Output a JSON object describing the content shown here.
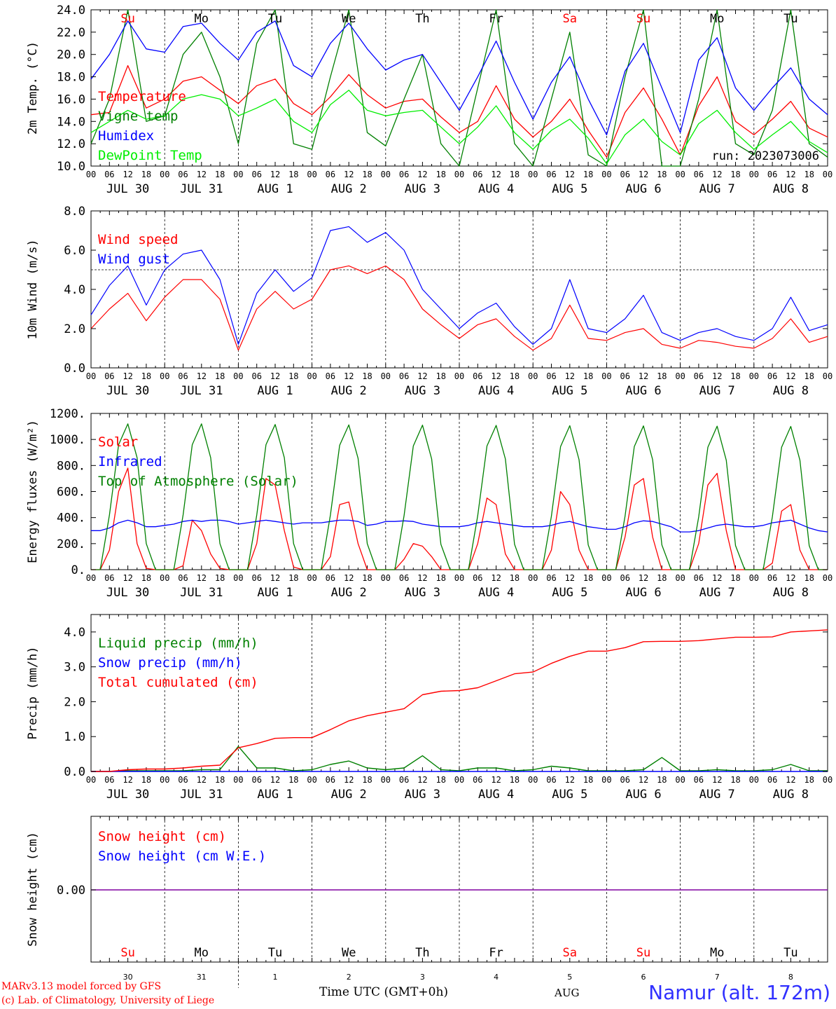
{
  "x_axis": {
    "hour_ticks": [
      "00",
      "06",
      "12",
      "18"
    ],
    "final_tick": "00",
    "date_labels": [
      "JUL 30",
      "JUL 31",
      "AUG  1",
      "AUG  2",
      "AUG  3",
      "AUG  4",
      "AUG  5",
      "AUG  6",
      "AUG  7",
      "AUG  8"
    ],
    "day_names": [
      "Su",
      "Mo",
      "Tu",
      "We",
      "Th",
      "Fr",
      "Sa",
      "Su",
      "Mo",
      "Tu"
    ],
    "weekend_flags": [
      true,
      false,
      false,
      false,
      false,
      false,
      true,
      true,
      false,
      false
    ],
    "day_numbers": [
      "30",
      "31",
      "1",
      "2",
      "3",
      "4",
      "5",
      "6",
      "7",
      "8"
    ],
    "month_label": "AUG",
    "time_label": "Time UTC (GMT+0h)"
  },
  "colors": {
    "red": "#ff0000",
    "green": "#008000",
    "blue": "#0000ff",
    "lightgreen": "#00ee00",
    "purple": "#8000a0",
    "weekend": "#ff0000",
    "weekday": "#000000"
  },
  "footer": {
    "model": "MARv3.13 model forced by GFS",
    "credit": "(c) Lab. of Climatology, University of Liege",
    "station": "Namur (alt. 172m)"
  },
  "chart_data": [
    {
      "type": "line",
      "ylabel": "2m Temp. (°C)",
      "ylim": [
        10.0,
        24.0
      ],
      "yticks": [
        "10.0",
        "12.0",
        "14.0",
        "16.0",
        "18.0",
        "20.0",
        "22.0",
        "24.0"
      ],
      "run_label": "run: 2023073006",
      "x_unit": "hours since JUL 30 00 UTC",
      "x": [
        0,
        6,
        12,
        18,
        24,
        30,
        36,
        42,
        48,
        54,
        60,
        66,
        72,
        78,
        84,
        90,
        96,
        102,
        108,
        114,
        120,
        126,
        132,
        138,
        144,
        150,
        156,
        162,
        168,
        174,
        180,
        186,
        192,
        198,
        204,
        210,
        216,
        222,
        228,
        234,
        240
      ],
      "series": [
        {
          "name": "Temperature",
          "color": "#ff0000",
          "values": [
            14.6,
            14.8,
            19.0,
            15.2,
            16.0,
            17.6,
            18.0,
            16.8,
            15.6,
            17.2,
            17.8,
            15.6,
            14.6,
            16.2,
            18.2,
            16.4,
            15.2,
            15.8,
            16.0,
            14.4,
            13.0,
            14.0,
            17.2,
            14.2,
            12.6,
            14.0,
            16.0,
            13.2,
            10.8,
            14.8,
            17.0,
            14.2,
            11.0,
            15.4,
            18.0,
            14.0,
            12.8,
            14.2,
            15.8,
            13.4,
            12.6
          ]
        },
        {
          "name": "Vigne temp",
          "color": "#008000",
          "values": [
            12.0,
            16.0,
            24.0,
            14.0,
            14.5,
            20.0,
            22.0,
            18.0,
            12.0,
            21.0,
            24.0,
            12.0,
            11.5,
            18.0,
            24.0,
            13.0,
            11.8,
            16.0,
            20.0,
            12.0,
            10.0,
            17.0,
            24.0,
            12.0,
            10.0,
            16.0,
            22.0,
            11.0,
            9.5,
            18.0,
            24.0,
            10.0,
            9.5,
            16.0,
            24.0,
            12.0,
            11.0,
            15.0,
            24.0,
            12.0,
            10.8
          ]
        },
        {
          "name": "Humidex",
          "color": "#0000ff",
          "values": [
            17.8,
            20.0,
            23.0,
            20.5,
            20.2,
            22.5,
            22.8,
            21.0,
            19.5,
            22.0,
            23.0,
            19.0,
            18.0,
            21.0,
            22.8,
            20.5,
            18.6,
            19.5,
            20.0,
            17.5,
            15.0,
            18.0,
            21.2,
            17.5,
            14.2,
            17.5,
            19.8,
            16.0,
            12.8,
            18.5,
            21.0,
            17.0,
            13.0,
            19.5,
            21.5,
            17.0,
            15.0,
            17.0,
            18.8,
            16.0,
            14.6
          ]
        },
        {
          "name": "DewPoint Temp",
          "color": "#00ee00",
          "values": [
            13.0,
            14.0,
            15.0,
            14.2,
            14.5,
            16.0,
            16.4,
            16.0,
            14.5,
            15.2,
            16.0,
            14.0,
            13.0,
            15.5,
            16.8,
            15.0,
            14.5,
            14.8,
            15.0,
            13.5,
            12.0,
            13.5,
            15.4,
            13.0,
            11.5,
            13.2,
            14.2,
            12.5,
            10.2,
            12.8,
            14.2,
            12.2,
            11.0,
            13.8,
            15.0,
            13.0,
            11.5,
            12.8,
            14.0,
            12.2,
            11.2
          ]
        }
      ]
    },
    {
      "type": "line",
      "ylabel": "10m Wind (m/s)",
      "ylim": [
        0.0,
        8.0
      ],
      "yticks": [
        "0.0",
        "2.0",
        "4.0",
        "6.0",
        "8.0"
      ],
      "reference_line": 5.0,
      "x_unit": "hours since JUL 30 00 UTC",
      "x": [
        0,
        6,
        12,
        18,
        24,
        30,
        36,
        42,
        48,
        54,
        60,
        66,
        72,
        78,
        84,
        90,
        96,
        102,
        108,
        114,
        120,
        126,
        132,
        138,
        144,
        150,
        156,
        162,
        168,
        174,
        180,
        186,
        192,
        198,
        204,
        210,
        216,
        222,
        228,
        234,
        240
      ],
      "series": [
        {
          "name": "Wind speed",
          "color": "#ff0000",
          "values": [
            2.0,
            3.0,
            3.8,
            2.4,
            3.6,
            4.5,
            4.5,
            3.5,
            0.9,
            3.0,
            3.9,
            3.0,
            3.5,
            5.0,
            5.2,
            4.8,
            5.2,
            4.5,
            3.0,
            2.2,
            1.5,
            2.2,
            2.5,
            1.6,
            0.9,
            1.5,
            3.2,
            1.5,
            1.4,
            1.8,
            2.0,
            1.2,
            1.0,
            1.4,
            1.3,
            1.1,
            1.0,
            1.5,
            2.5,
            1.3,
            1.6
          ]
        },
        {
          "name": "Wind gust",
          "color": "#0000ff",
          "values": [
            2.7,
            4.2,
            5.2,
            3.2,
            5.0,
            5.8,
            6.0,
            4.5,
            1.2,
            3.8,
            5.0,
            3.9,
            4.6,
            7.0,
            7.2,
            6.4,
            6.9,
            6.0,
            4.0,
            3.0,
            2.0,
            2.8,
            3.3,
            2.1,
            1.2,
            2.0,
            4.5,
            2.0,
            1.8,
            2.5,
            3.7,
            1.8,
            1.4,
            1.8,
            2.0,
            1.6,
            1.4,
            2.0,
            3.6,
            1.9,
            2.2
          ]
        }
      ]
    },
    {
      "type": "line",
      "ylabel": "Energy fluxes (W/m²)",
      "ylim": [
        0,
        1200
      ],
      "yticks": [
        "0.",
        "200.",
        "400.",
        "600.",
        "800.",
        "1000.",
        "1200."
      ],
      "x_unit": "hours since JUL 30 00 UTC",
      "x": [
        0,
        3,
        6,
        9,
        12,
        15,
        18,
        21,
        24,
        27,
        30,
        33,
        36,
        39,
        42,
        45,
        48,
        51,
        54,
        57,
        60,
        63,
        66,
        69,
        72,
        75,
        78,
        81,
        84,
        87,
        90,
        93,
        96,
        99,
        102,
        105,
        108,
        111,
        114,
        117,
        120,
        123,
        126,
        129,
        132,
        135,
        138,
        141,
        144,
        147,
        150,
        153,
        156,
        159,
        162,
        165,
        168,
        171,
        174,
        177,
        180,
        183,
        186,
        189,
        192,
        195,
        198,
        201,
        204,
        207,
        210,
        213,
        216,
        219,
        222,
        225,
        228,
        231,
        234,
        237,
        240
      ],
      "series": [
        {
          "name": "Solar",
          "color": "#ff0000",
          "values": [
            0,
            0,
            150,
            600,
            780,
            200,
            10,
            0,
            0,
            0,
            30,
            380,
            300,
            120,
            10,
            0,
            0,
            0,
            200,
            700,
            650,
            300,
            20,
            0,
            0,
            0,
            100,
            500,
            520,
            200,
            0,
            0,
            0,
            0,
            80,
            200,
            180,
            100,
            0,
            0,
            0,
            0,
            200,
            550,
            500,
            120,
            0,
            0,
            0,
            0,
            150,
            600,
            500,
            150,
            0,
            0,
            0,
            0,
            250,
            650,
            700,
            250,
            0,
            0,
            0,
            0,
            200,
            650,
            740,
            300,
            0,
            0,
            0,
            0,
            50,
            450,
            500,
            150,
            0,
            0,
            0
          ]
        },
        {
          "name": "Infrared",
          "color": "#0000ff",
          "values": [
            300,
            300,
            320,
            360,
            380,
            360,
            330,
            330,
            340,
            350,
            370,
            380,
            370,
            380,
            380,
            370,
            350,
            360,
            370,
            380,
            370,
            360,
            350,
            360,
            360,
            360,
            370,
            380,
            380,
            370,
            340,
            350,
            370,
            370,
            375,
            370,
            350,
            340,
            330,
            330,
            330,
            340,
            360,
            370,
            360,
            350,
            340,
            330,
            330,
            330,
            340,
            360,
            370,
            350,
            330,
            320,
            310,
            310,
            330,
            360,
            375,
            370,
            350,
            330,
            290,
            290,
            300,
            320,
            340,
            350,
            340,
            330,
            330,
            340,
            360,
            370,
            380,
            350,
            320,
            300,
            290
          ]
        },
        {
          "name": "Top of Atmosphere (Solar)",
          "color": "#008000",
          "values": [
            0,
            0,
            420,
            960,
            1120,
            860,
            200,
            0,
            0,
            0,
            420,
            960,
            1120,
            860,
            200,
            0,
            0,
            0,
            420,
            960,
            1115,
            860,
            200,
            0,
            0,
            0,
            420,
            955,
            1112,
            855,
            200,
            0,
            0,
            0,
            415,
            950,
            1110,
            850,
            195,
            0,
            0,
            0,
            415,
            950,
            1108,
            850,
            195,
            0,
            0,
            0,
            410,
            945,
            1106,
            845,
            190,
            0,
            0,
            0,
            410,
            945,
            1104,
            845,
            190,
            0,
            0,
            0,
            405,
            940,
            1102,
            840,
            185,
            0,
            0,
            0,
            405,
            940,
            1100,
            840,
            185,
            0,
            0
          ]
        }
      ]
    },
    {
      "type": "line",
      "ylabel": "Precip (mm/h)",
      "ylim": [
        0.0,
        4.5
      ],
      "yticks": [
        "0.0",
        "1.0",
        "2.0",
        "3.0",
        "4.0"
      ],
      "x_unit": "hours since JUL 30 00 UTC",
      "x": [
        0,
        6,
        12,
        18,
        24,
        30,
        36,
        42,
        48,
        54,
        60,
        66,
        72,
        78,
        84,
        90,
        96,
        102,
        108,
        114,
        120,
        126,
        132,
        138,
        144,
        150,
        156,
        162,
        168,
        174,
        180,
        186,
        192,
        198,
        204,
        210,
        216,
        222,
        228,
        234,
        240
      ],
      "series": [
        {
          "name": "Liquid precip (mm/h)",
          "color": "#008000",
          "values": [
            0,
            0,
            0.02,
            0.02,
            0.02,
            0.02,
            0.05,
            0.05,
            0.72,
            0.1,
            0.1,
            0.02,
            0.05,
            0.2,
            0.3,
            0.1,
            0.05,
            0.1,
            0.45,
            0.05,
            0.02,
            0.1,
            0.1,
            0.02,
            0.05,
            0.15,
            0.1,
            0.02,
            0.02,
            0.02,
            0.05,
            0.4,
            0.02,
            0.02,
            0.05,
            0.02,
            0.02,
            0.05,
            0.2,
            0.02,
            0.02
          ]
        },
        {
          "name": "Snow precip (mm/h)",
          "color": "#0000ff",
          "values": [
            0,
            0,
            0,
            0,
            0,
            0,
            0,
            0,
            0,
            0,
            0,
            0,
            0,
            0,
            0,
            0,
            0,
            0,
            0,
            0,
            0,
            0,
            0,
            0,
            0,
            0,
            0,
            0,
            0,
            0,
            0,
            0,
            0,
            0,
            0,
            0,
            0,
            0,
            0,
            0,
            0
          ]
        },
        {
          "name": "Total cumulated (cm)",
          "color": "#ff0000",
          "values": [
            0,
            0,
            0.05,
            0.07,
            0.07,
            0.1,
            0.15,
            0.18,
            0.68,
            0.8,
            0.95,
            0.97,
            0.97,
            1.2,
            1.45,
            1.6,
            1.7,
            1.8,
            2.2,
            2.3,
            2.32,
            2.4,
            2.6,
            2.8,
            2.85,
            3.1,
            3.3,
            3.45,
            3.45,
            3.55,
            3.72,
            3.73,
            3.73,
            3.75,
            3.8,
            3.85,
            3.85,
            3.86,
            4.0,
            4.03,
            4.06
          ]
        }
      ]
    },
    {
      "type": "line",
      "ylabel": "Snow height (cm)",
      "ytick_label": "0.00",
      "x_unit": "hours since JUL 30 00 UTC",
      "x": [
        0,
        240
      ],
      "series": [
        {
          "name": "Snow height (cm)",
          "color": "#ff0000",
          "values": [
            0,
            0
          ]
        },
        {
          "name": "Snow height (cm W.E.)",
          "color": "#0000ff",
          "values": [
            0,
            0
          ]
        }
      ]
    }
  ]
}
